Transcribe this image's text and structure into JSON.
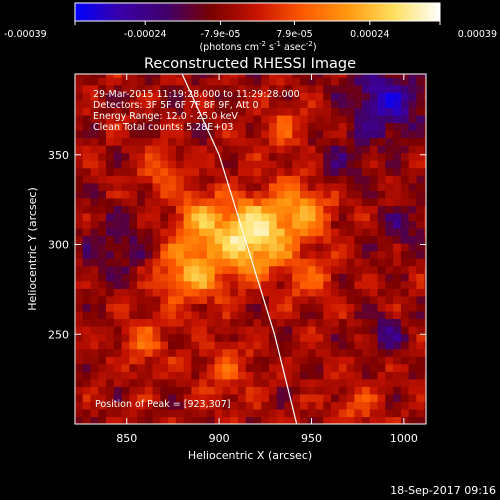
{
  "chart_data": {
    "type": "heatmap",
    "title": "Reconstructed RHESSI Image",
    "xlabel": "Heliocentric X (arcsec)",
    "ylabel": "Heliocentric Y (arcsec)",
    "xlim": [
      822,
      1012
    ],
    "ylim": [
      200,
      395
    ],
    "xticks": [
      850,
      900,
      950,
      1000
    ],
    "yticks": [
      250,
      300,
      350
    ],
    "colorbar": {
      "label": "(photons cm",
      "label_parts": [
        "(photons cm",
        "-2",
        " s",
        "-1",
        " asec",
        "-2",
        ")"
      ],
      "range": [
        -0.00039,
        0.00039
      ],
      "ticks": [
        -0.00039,
        -0.00024,
        -7.9e-05,
        7.9e-05,
        0.00024,
        0.00039
      ],
      "tick_labels": [
        "-0.00039",
        "-0.00024",
        "-7.9e-05",
        "7.9e-05",
        "0.00024",
        "0.00039"
      ],
      "colormap": [
        "#0000ff",
        "#3a00a8",
        "#40006a",
        "#7a0000",
        "#c81400",
        "#ff5a00",
        "#ff9a10",
        "#ffe060",
        "#ffffff"
      ]
    },
    "annotations": [
      "29-Mar-2015 11:19:28.000 to 11:29:28.000",
      "Detectors: 3F 5F 6F 7F 8F 9F, Att 0",
      "Energy Range: 12.0 - 25.0 keV",
      "Clean    Total counts: 5.28E+03",
      "Position of Peak = [923,307]"
    ],
    "peak": [
      923,
      307
    ],
    "limb_curve": [
      [
        880,
        395
      ],
      [
        900,
        350
      ],
      [
        915,
        300
      ],
      [
        930,
        250
      ],
      [
        942,
        200
      ]
    ],
    "sources": [
      {
        "x": 918,
        "y": 305,
        "sigma": 14,
        "amp": 1.0
      },
      {
        "x": 945,
        "y": 320,
        "sigma": 12,
        "amp": 0.55
      },
      {
        "x": 885,
        "y": 285,
        "sigma": 13,
        "amp": 0.65
      },
      {
        "x": 890,
        "y": 315,
        "sigma": 10,
        "amp": 0.5
      },
      {
        "x": 950,
        "y": 280,
        "sigma": 10,
        "amp": 0.35
      },
      {
        "x": 870,
        "y": 340,
        "sigma": 9,
        "amp": 0.35
      },
      {
        "x": 935,
        "y": 365,
        "sigma": 9,
        "amp": 0.3
      },
      {
        "x": 860,
        "y": 245,
        "sigma": 10,
        "amp": 0.35
      },
      {
        "x": 905,
        "y": 230,
        "sigma": 11,
        "amp": 0.3
      },
      {
        "x": 975,
        "y": 210,
        "sigma": 9,
        "amp": 0.3
      },
      {
        "x": 990,
        "y": 250,
        "sigma": 8,
        "amp": -0.35
      },
      {
        "x": 990,
        "y": 380,
        "sigma": 14,
        "amp": -0.6
      },
      {
        "x": 845,
        "y": 300,
        "sigma": 12,
        "amp": -0.3
      },
      {
        "x": 965,
        "y": 345,
        "sigma": 10,
        "amp": -0.25
      },
      {
        "x": 1000,
        "y": 310,
        "sigma": 9,
        "amp": -0.3
      }
    ]
  },
  "footer": {
    "timestamp": "18-Sep-2017 09:16"
  }
}
